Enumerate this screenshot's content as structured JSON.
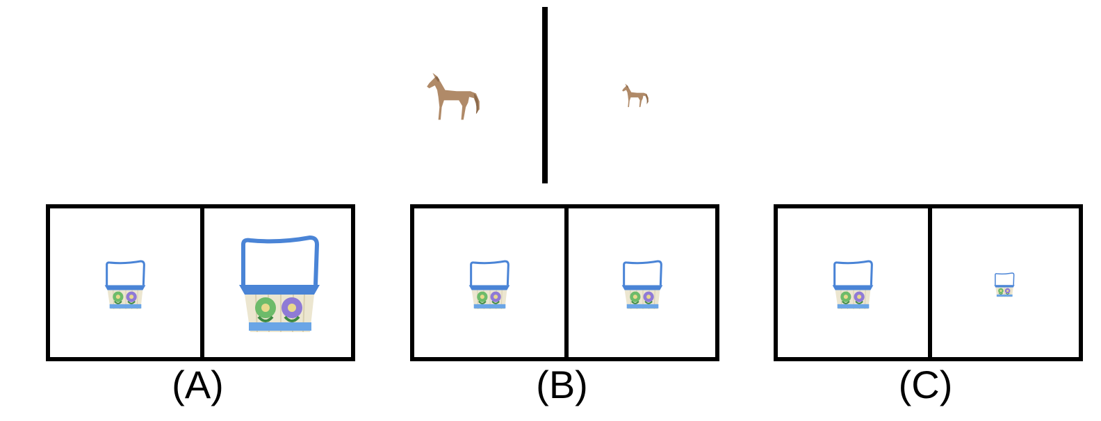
{
  "example": {
    "left_icon": "horse-icon",
    "right_icon": "horse-icon",
    "right_scale_ratio": 0.5
  },
  "options": [
    {
      "label": "(A)",
      "left_icon": "basket-icon",
      "right_icon": "basket-icon",
      "right_scale_ratio": 2.0
    },
    {
      "label": "(B)",
      "left_icon": "basket-icon",
      "right_icon": "basket-icon",
      "right_scale_ratio": 1.0
    },
    {
      "label": "(C)",
      "left_icon": "basket-icon",
      "right_icon": "basket-icon",
      "right_scale_ratio": 0.5
    }
  ],
  "colors": {
    "horse": "#b08a68",
    "basket_blue": "#4a84d6",
    "basket_weave": "#ece6d0",
    "flower_green": "#6dbb6a",
    "flower_purple": "#8f7ad6",
    "border": "#000000"
  }
}
